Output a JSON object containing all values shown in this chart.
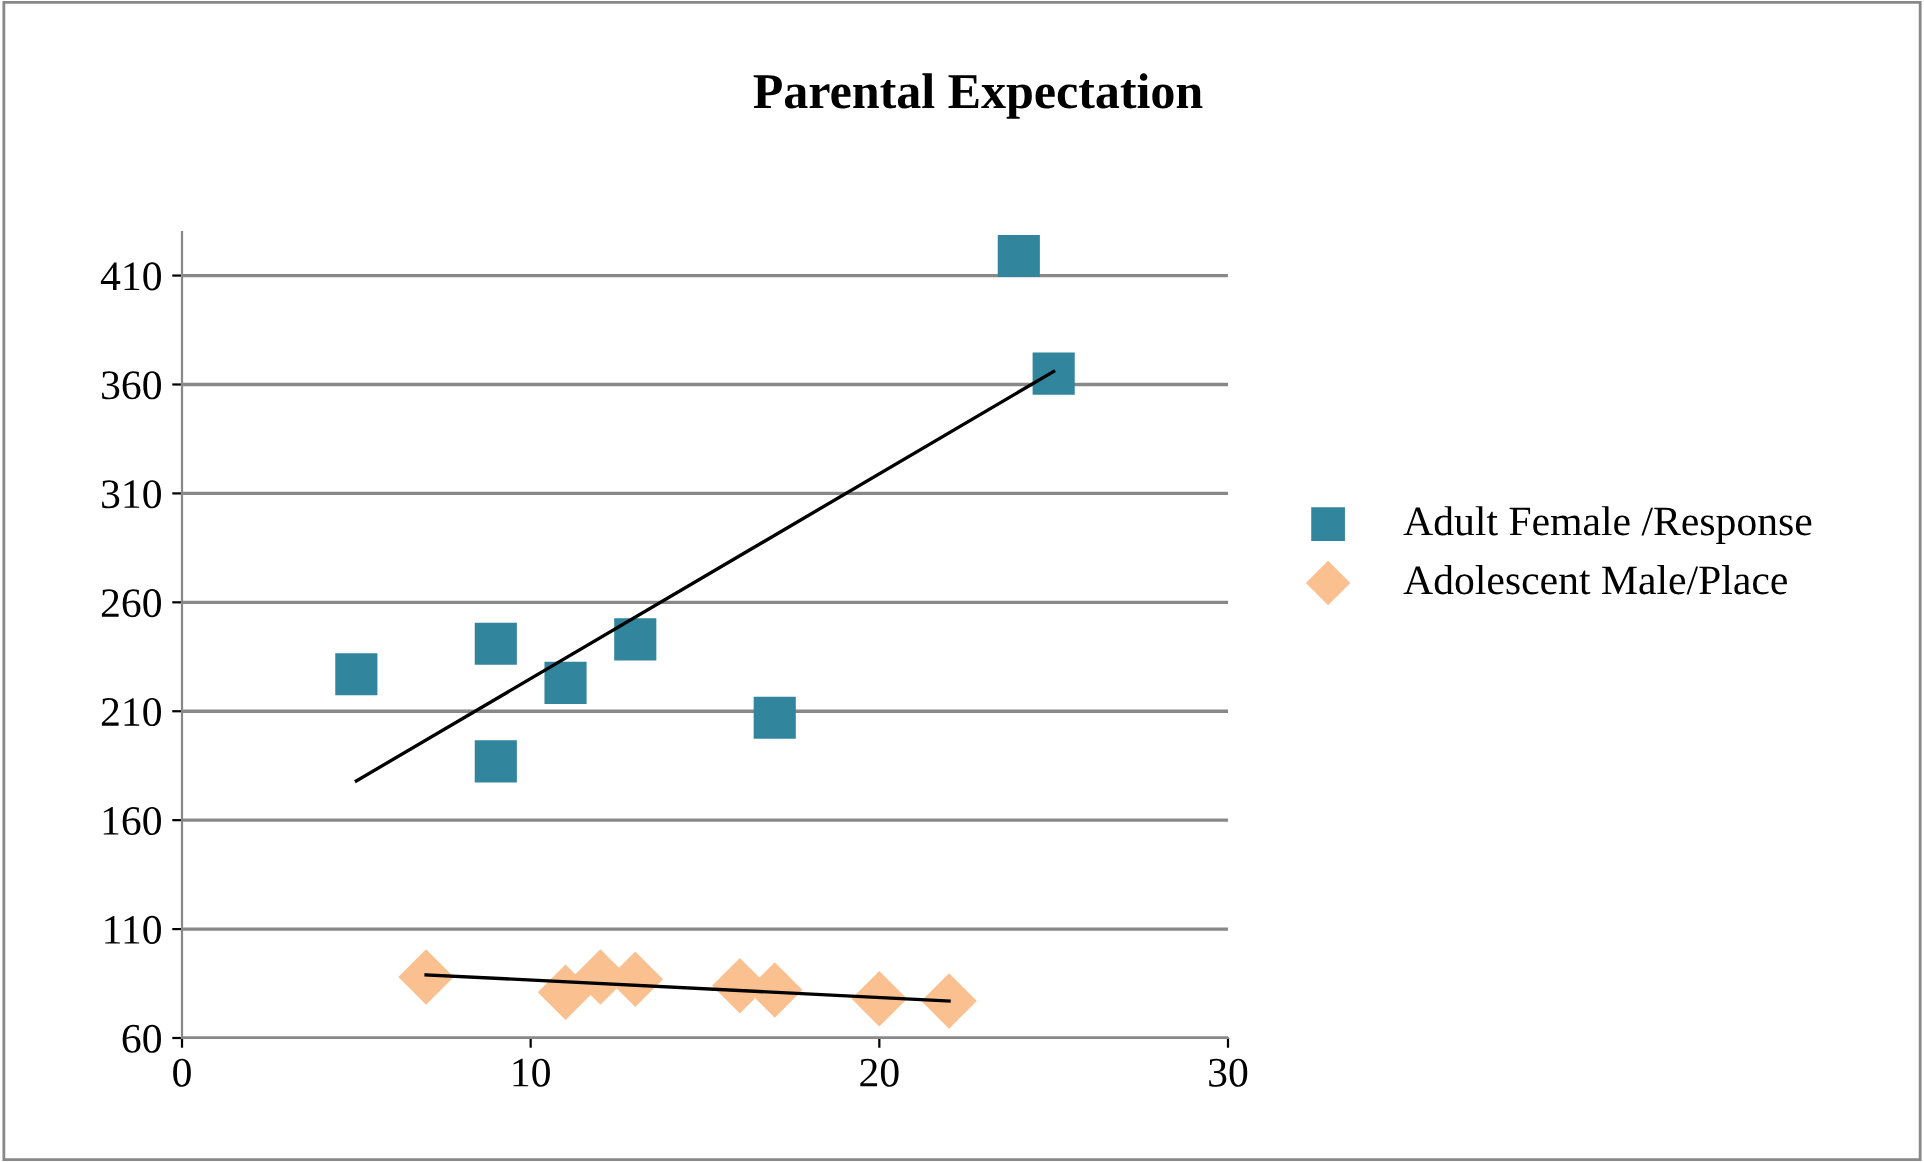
{
  "chart_data": {
    "type": "scatter",
    "title": "Parental Expectation",
    "xlim": [
      0,
      30
    ],
    "xticks": [
      0,
      10,
      20,
      30
    ],
    "ylim": [
      60,
      430
    ],
    "yticks": [
      60,
      110,
      160,
      210,
      260,
      310,
      360,
      410
    ],
    "grid": "y",
    "legend": "right",
    "series": [
      {
        "name": "Adult Female /Response",
        "color": "#31859c",
        "marker": "square",
        "x": [
          5,
          9,
          9,
          11,
          13,
          17,
          24,
          25
        ],
        "values": [
          227,
          241,
          187,
          223,
          243,
          207,
          419,
          365
        ]
      },
      {
        "name": "Adolescent Male/Place",
        "color": "#fac090",
        "marker": "diamond",
        "x": [
          7,
          11,
          12,
          13,
          16,
          17,
          20,
          22
        ],
        "values": [
          88,
          81,
          88,
          87,
          84,
          82,
          78,
          77
        ]
      },
      {
        "type": "line",
        "color": "#000000",
        "marker": "none",
        "line_style": "solid",
        "x": [
          5,
          25
        ],
        "values": [
          178,
          366
        ]
      },
      {
        "type": "line",
        "color": "#000000",
        "marker": "none",
        "line_style": "solid",
        "x": [
          7,
          22
        ],
        "values": [
          89,
          77
        ]
      }
    ]
  }
}
